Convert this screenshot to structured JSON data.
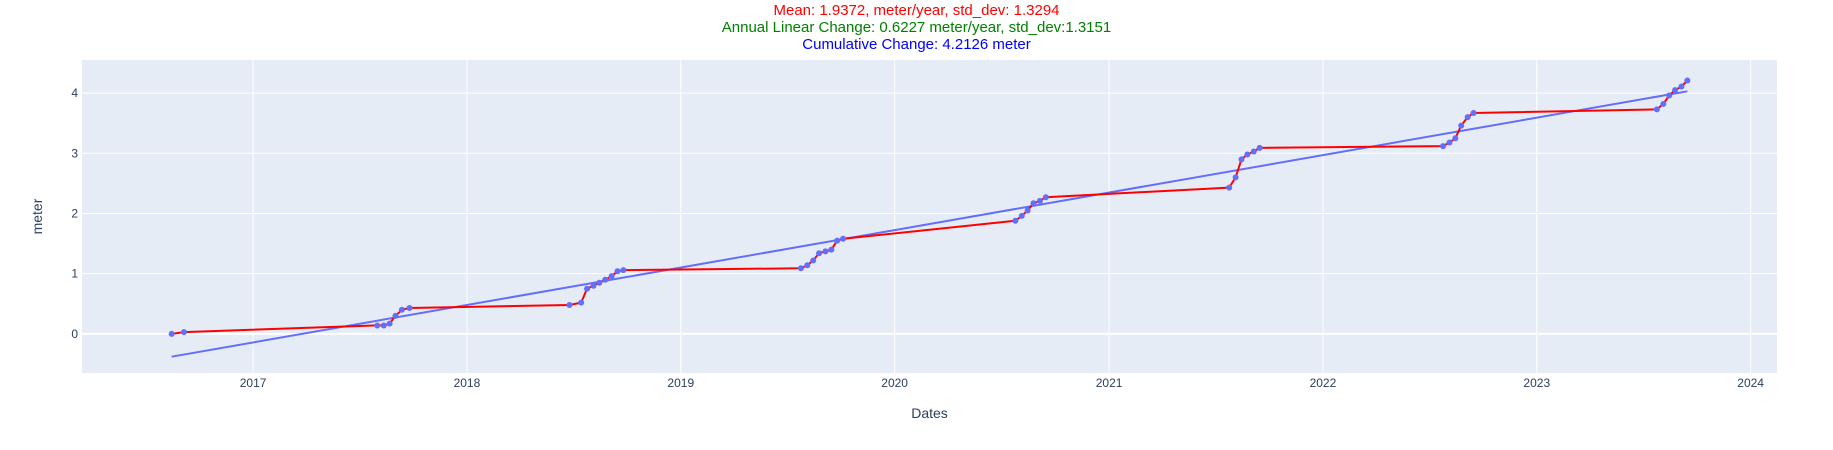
{
  "title_lines": [
    {
      "text": "Mean: 1.9372, meter/year, std_dev: 1.3294",
      "color": "#ff0000"
    },
    {
      "text": "Annual Linear Change: 0.6227 meter/year, std_dev:1.3151",
      "color": "#008000"
    },
    {
      "text": "Cumulative Change: 4.2126 meter",
      "color": "#0000ff"
    }
  ],
  "chart_data": {
    "type": "line",
    "xlabel": "Dates",
    "ylabel": "meter",
    "x_type": "date",
    "x_ticks": [
      "2017",
      "2018",
      "2019",
      "2020",
      "2021",
      "2022",
      "2023",
      "2024"
    ],
    "y_ticks": [
      0,
      1,
      2,
      3,
      4
    ],
    "xlim": [
      "2016-03-15",
      "2024-02-15"
    ],
    "ylim": [
      -0.65,
      4.55
    ],
    "grid": true,
    "plot_background": "#e5ecf6",
    "series": [
      {
        "type": "line+markers",
        "line_color": "#ff0000",
        "marker_color": "#636efa",
        "x": [
          "2016-08-15",
          "2016-09-05",
          "2017-08-01",
          "2017-08-12",
          "2017-08-22",
          "2017-09-01",
          "2017-09-12",
          "2017-09-25",
          "2018-06-25",
          "2018-07-15",
          "2018-07-25",
          "2018-08-05",
          "2018-08-15",
          "2018-08-25",
          "2018-09-05",
          "2018-09-15",
          "2018-09-25",
          "2019-07-25",
          "2019-08-05",
          "2019-08-15",
          "2019-08-25",
          "2019-09-05",
          "2019-09-15",
          "2019-09-25",
          "2019-10-05",
          "2020-07-25",
          "2020-08-05",
          "2020-08-15",
          "2020-08-25",
          "2020-09-05",
          "2020-09-15",
          "2021-07-25",
          "2021-08-05",
          "2021-08-15",
          "2021-08-25",
          "2021-09-05",
          "2021-09-15",
          "2022-07-25",
          "2022-08-05",
          "2022-08-15",
          "2022-08-25",
          "2022-09-05",
          "2022-09-15",
          "2023-07-25",
          "2023-08-05",
          "2023-08-15",
          "2023-08-25",
          "2023-09-05",
          "2023-09-15"
        ],
        "y": [
          0.0,
          0.03,
          0.14,
          0.14,
          0.17,
          0.3,
          0.4,
          0.43,
          0.48,
          0.52,
          0.75,
          0.8,
          0.85,
          0.9,
          0.96,
          1.04,
          1.06,
          1.09,
          1.14,
          1.22,
          1.34,
          1.37,
          1.4,
          1.55,
          1.58,
          1.88,
          1.96,
          2.05,
          2.17,
          2.21,
          2.27,
          2.43,
          2.6,
          2.9,
          2.98,
          3.03,
          3.09,
          3.12,
          3.18,
          3.25,
          3.46,
          3.6,
          3.67,
          3.73,
          3.82,
          3.96,
          4.05,
          4.11,
          4.21
        ]
      },
      {
        "type": "line",
        "line_color": "#636efa",
        "x": [
          "2016-08-15",
          "2023-09-15"
        ],
        "y": [
          -0.38,
          4.03
        ]
      }
    ]
  }
}
